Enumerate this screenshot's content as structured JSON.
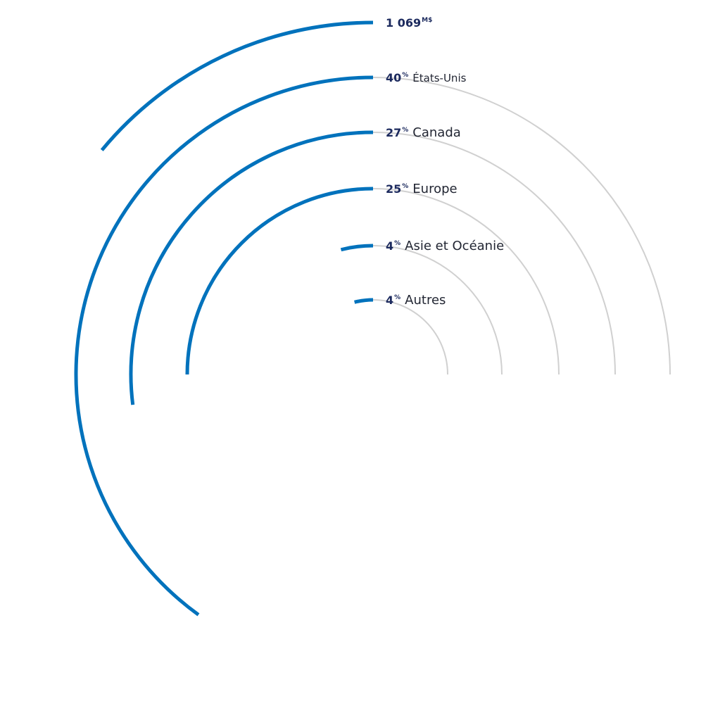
{
  "colors": {
    "accent": "#0072bc",
    "track": "#d0d0d0",
    "value_text": "#1c2a5e",
    "label_text": "#222633"
  },
  "chart_data": {
    "type": "radial-bar",
    "title": "",
    "total": {
      "value": "1 069",
      "unit": "M$"
    },
    "unit": "%",
    "categories": [
      "États-Unis",
      "Canada",
      "Europe",
      "Asie et Océanie",
      "Autres"
    ],
    "values": [
      40,
      27,
      25,
      4,
      4
    ],
    "total_ring_percent": 100,
    "total_ring_end_percent": 86,
    "legend": "labels-at-ring-start"
  }
}
